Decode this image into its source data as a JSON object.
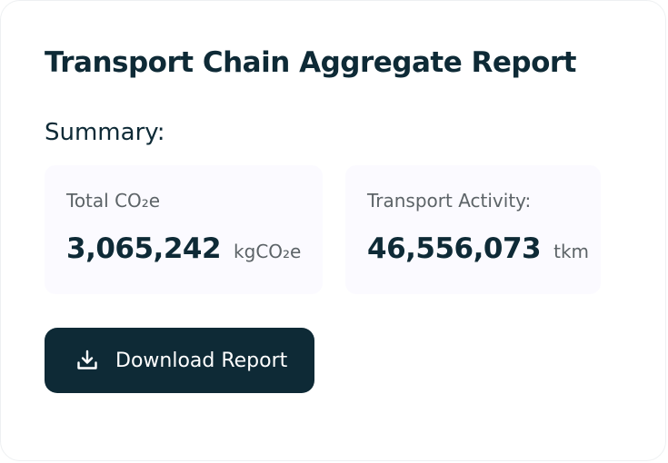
{
  "report": {
    "title": "Transport Chain Aggregate Report",
    "summary_label": "Summary:"
  },
  "stats": {
    "total_co2e": {
      "label": "Total CO₂e",
      "value": "3,065,242",
      "unit": "kgCO₂e"
    },
    "transport_activity": {
      "label": "Transport Activity:",
      "value": "46,556,073",
      "unit": "tkm"
    }
  },
  "actions": {
    "download_label": "Download Report",
    "download_icon": "download-icon"
  },
  "colors": {
    "primary": "#0e2a36",
    "muted_text": "#5c6367",
    "stat_background": "#fbfaff"
  }
}
